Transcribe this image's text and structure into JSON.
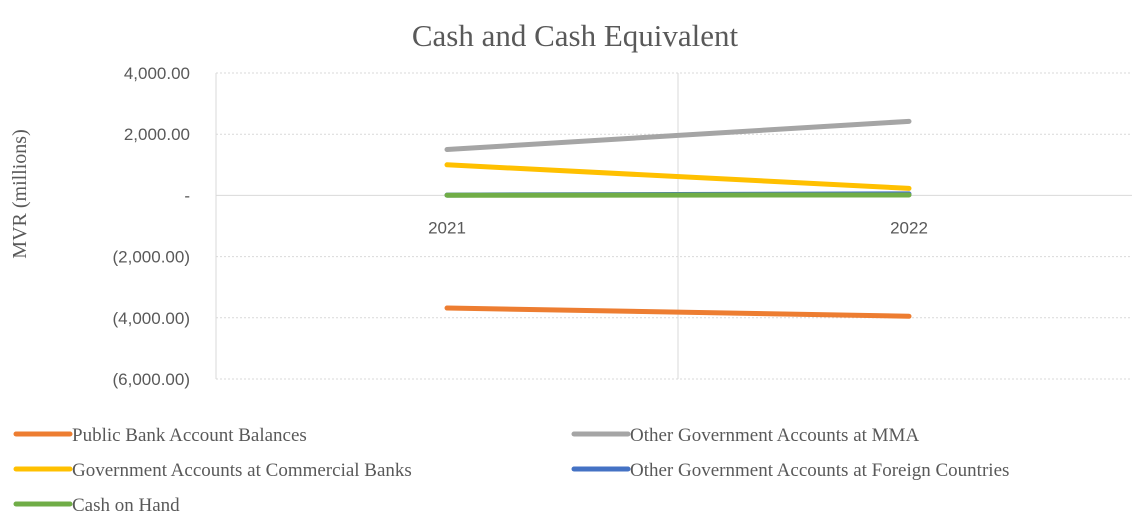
{
  "chart_data": {
    "type": "line",
    "title": "Cash and Cash Equivalent",
    "xlabel": "",
    "ylabel": "MVR (millions)",
    "categories": [
      "2021",
      "2022"
    ],
    "ylim": [
      -6000,
      4000
    ],
    "yticks": [
      4000,
      2000,
      0,
      -2000,
      -4000,
      -6000
    ],
    "ytick_labels": [
      "4,000.00",
      "2,000.00",
      "-",
      "(2,000.00)",
      "(4,000.00)",
      "(6,000.00)"
    ],
    "grid": true,
    "legend_position": "bottom",
    "series": [
      {
        "name": "Public Bank Account Balances",
        "values": [
          -3680,
          -3950
        ],
        "color": "#ED7D31"
      },
      {
        "name": "Other Government Accounts at MMA",
        "values": [
          1500,
          2420
        ],
        "color": "#A5A5A5"
      },
      {
        "name": "Government Accounts at Commercial Banks",
        "values": [
          1000,
          230
        ],
        "color": "#FFC000"
      },
      {
        "name": "Other Government Accounts at Foreign Countries",
        "values": [
          10,
          50
        ],
        "color": "#4472C4"
      },
      {
        "name": "Cash on Hand",
        "values": [
          5,
          15
        ],
        "color": "#70AD47"
      }
    ]
  }
}
